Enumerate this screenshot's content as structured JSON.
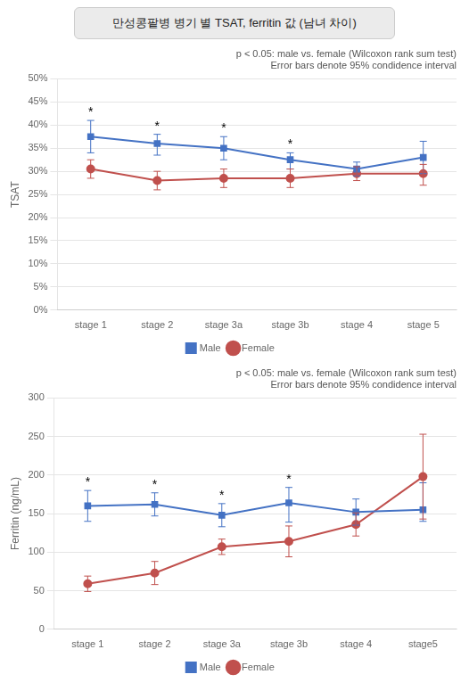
{
  "title": "만성콩팥병 병기 별 TSAT, ferritin 값 (남녀 차이)",
  "chart_data": [
    {
      "type": "line",
      "subtitle": "p < 0.05: male vs. female (Wilcoxon rank sum test)\nError bars denote 95% condidence interval",
      "ylabel": "TSAT",
      "categories": [
        "stage 1",
        "stage 2",
        "stage 3a",
        "stage 3b",
        "stage 4",
        "stage 5"
      ],
      "series": [
        {
          "name": "Male",
          "color": "#4472C4",
          "marker": "square",
          "values": [
            37.5,
            36.0,
            35.0,
            32.5,
            30.5,
            33.0
          ],
          "error_lower": [
            3.5,
            2.5,
            2.5,
            2.0,
            1.5,
            3.5
          ],
          "error_upper": [
            3.5,
            2.0,
            2.5,
            1.5,
            1.5,
            3.5
          ]
        },
        {
          "name": "Female",
          "color": "#C0504D",
          "marker": "circle",
          "values": [
            30.5,
            28.0,
            28.5,
            28.5,
            29.5,
            29.5
          ],
          "error_lower": [
            2.0,
            2.0,
            2.0,
            2.0,
            1.5,
            2.5
          ],
          "error_upper": [
            2.0,
            2.0,
            2.0,
            2.0,
            1.5,
            2.0
          ]
        }
      ],
      "annotations": [
        {
          "x": "stage 1",
          "text": "*"
        },
        {
          "x": "stage 2",
          "text": "*"
        },
        {
          "x": "stage 3a",
          "text": "*"
        },
        {
          "x": "stage 3b",
          "text": "*"
        }
      ],
      "ylim": [
        0,
        50
      ],
      "yticks": [
        {
          "value": 0,
          "label": "0%"
        },
        {
          "value": 5,
          "label": "5%"
        },
        {
          "value": 10,
          "label": "10%"
        },
        {
          "value": 15,
          "label": "15%"
        },
        {
          "value": 20,
          "label": "20%"
        },
        {
          "value": 25,
          "label": "25%"
        },
        {
          "value": 30,
          "label": "30%"
        },
        {
          "value": 35,
          "label": "35%"
        },
        {
          "value": 40,
          "label": "40%"
        },
        {
          "value": 45,
          "label": "45%"
        },
        {
          "value": 50,
          "label": "50%"
        }
      ],
      "grid": true,
      "legend": "bottom"
    },
    {
      "type": "line",
      "subtitle": "p < 0.05: male vs. female (Wilcoxon rank sum test)\nError bars denote 95% condidence interval",
      "ylabel": "Ferritin (ng/mL)",
      "categories": [
        "stage 1",
        "stage 2",
        "stage 3a",
        "stage 3b",
        "stage 4",
        "stage5"
      ],
      "series": [
        {
          "name": "Male",
          "color": "#4472C4",
          "marker": "square",
          "values": [
            160,
            162,
            148,
            164,
            152,
            155
          ],
          "error_lower": [
            20,
            15,
            15,
            25,
            17,
            15
          ],
          "error_upper": [
            20,
            15,
            15,
            20,
            17,
            35
          ]
        },
        {
          "name": "Female",
          "color": "#C0504D",
          "marker": "circle",
          "values": [
            59,
            73,
            107,
            114,
            136,
            198
          ],
          "error_lower": [
            10,
            15,
            10,
            20,
            15,
            55
          ],
          "error_upper": [
            10,
            15,
            10,
            20,
            15,
            55
          ]
        }
      ],
      "annotations": [
        {
          "x": "stage 1",
          "text": "*"
        },
        {
          "x": "stage 2",
          "text": "*"
        },
        {
          "x": "stage 3a",
          "text": "*"
        },
        {
          "x": "stage 3b",
          "text": "*"
        }
      ],
      "ylim": [
        0,
        300
      ],
      "yticks": [
        0,
        50,
        100,
        150,
        200,
        250,
        300
      ],
      "grid": true,
      "legend": "bottom"
    }
  ]
}
